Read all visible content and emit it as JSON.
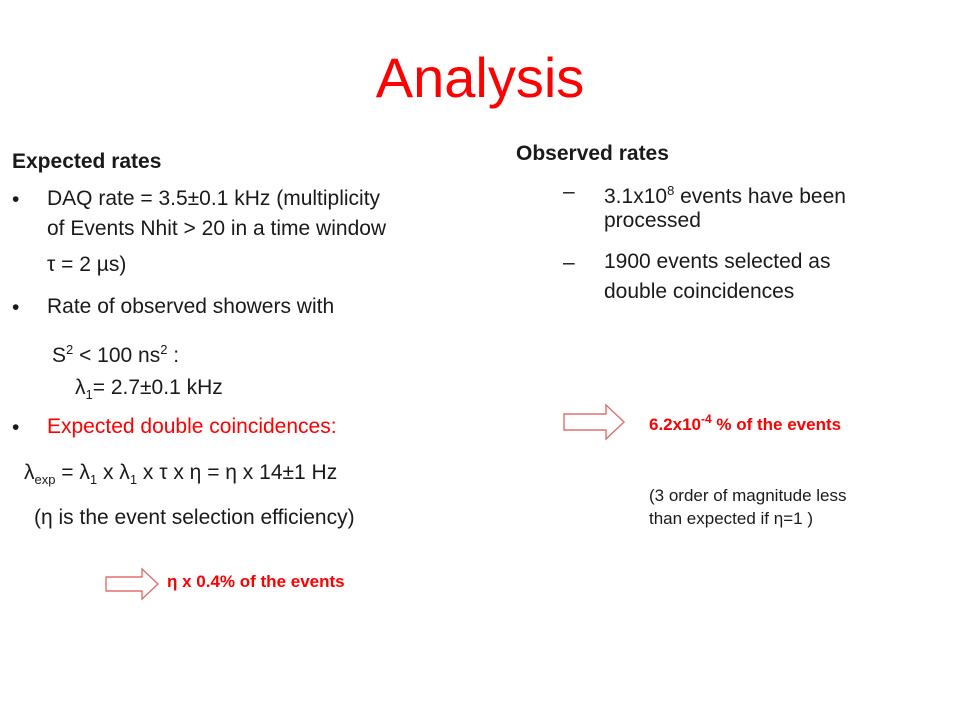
{
  "slide": {
    "title": "Analysis"
  },
  "left": {
    "heading": "Expected rates",
    "bullet1": {
      "line1": "DAQ rate = 3.5±0.1 kHz (multiplicity",
      "line2": "of Events Nhit > 20 in a time window",
      "line3": "τ = 2 µs)"
    },
    "bullet2": {
      "line1": "Rate of observed showers with",
      "s2_pre": "S",
      "s2_sup": "2",
      "s2_mid": " < 100 ns",
      "s2_sup2": "2",
      "s2_post": " :",
      "lambda1_pre": "λ",
      "lambda1_sub": "1",
      "lambda1_post": "= 2.7±0.1 kHz"
    },
    "bullet3": {
      "text": "Expected double coincidences:"
    },
    "formula": {
      "lambda": "λ",
      "exp_sub": "exp",
      "eq1": " = λ",
      "sub1": "1",
      "x1": " x λ",
      "sub2": "1",
      "rest": " x τ x η = η x 14±1 Hz"
    },
    "note": "(η is the event selection efficiency)",
    "result": "η x 0.4% of the events"
  },
  "right": {
    "heading": "Observed rates",
    "item1_pre": "3.1x10",
    "item1_sup": "8",
    "item1_post": " events have been",
    "item1_line2": "processed",
    "item2_line1": "1900 events selected as",
    "item2_line2": "double coincidences",
    "result_pre": "6.2x10",
    "result_sup": "-4",
    "result_post": " % of the events",
    "note_line1": "(3 order of magnitude less",
    "note_line2": "than expected if η=1 )"
  },
  "colors": {
    "accent": "#ff0000",
    "text": "#1a1a1a",
    "background": "#ffffff"
  },
  "icons": [
    "right-arrow-icon",
    "right-arrow-icon"
  ]
}
